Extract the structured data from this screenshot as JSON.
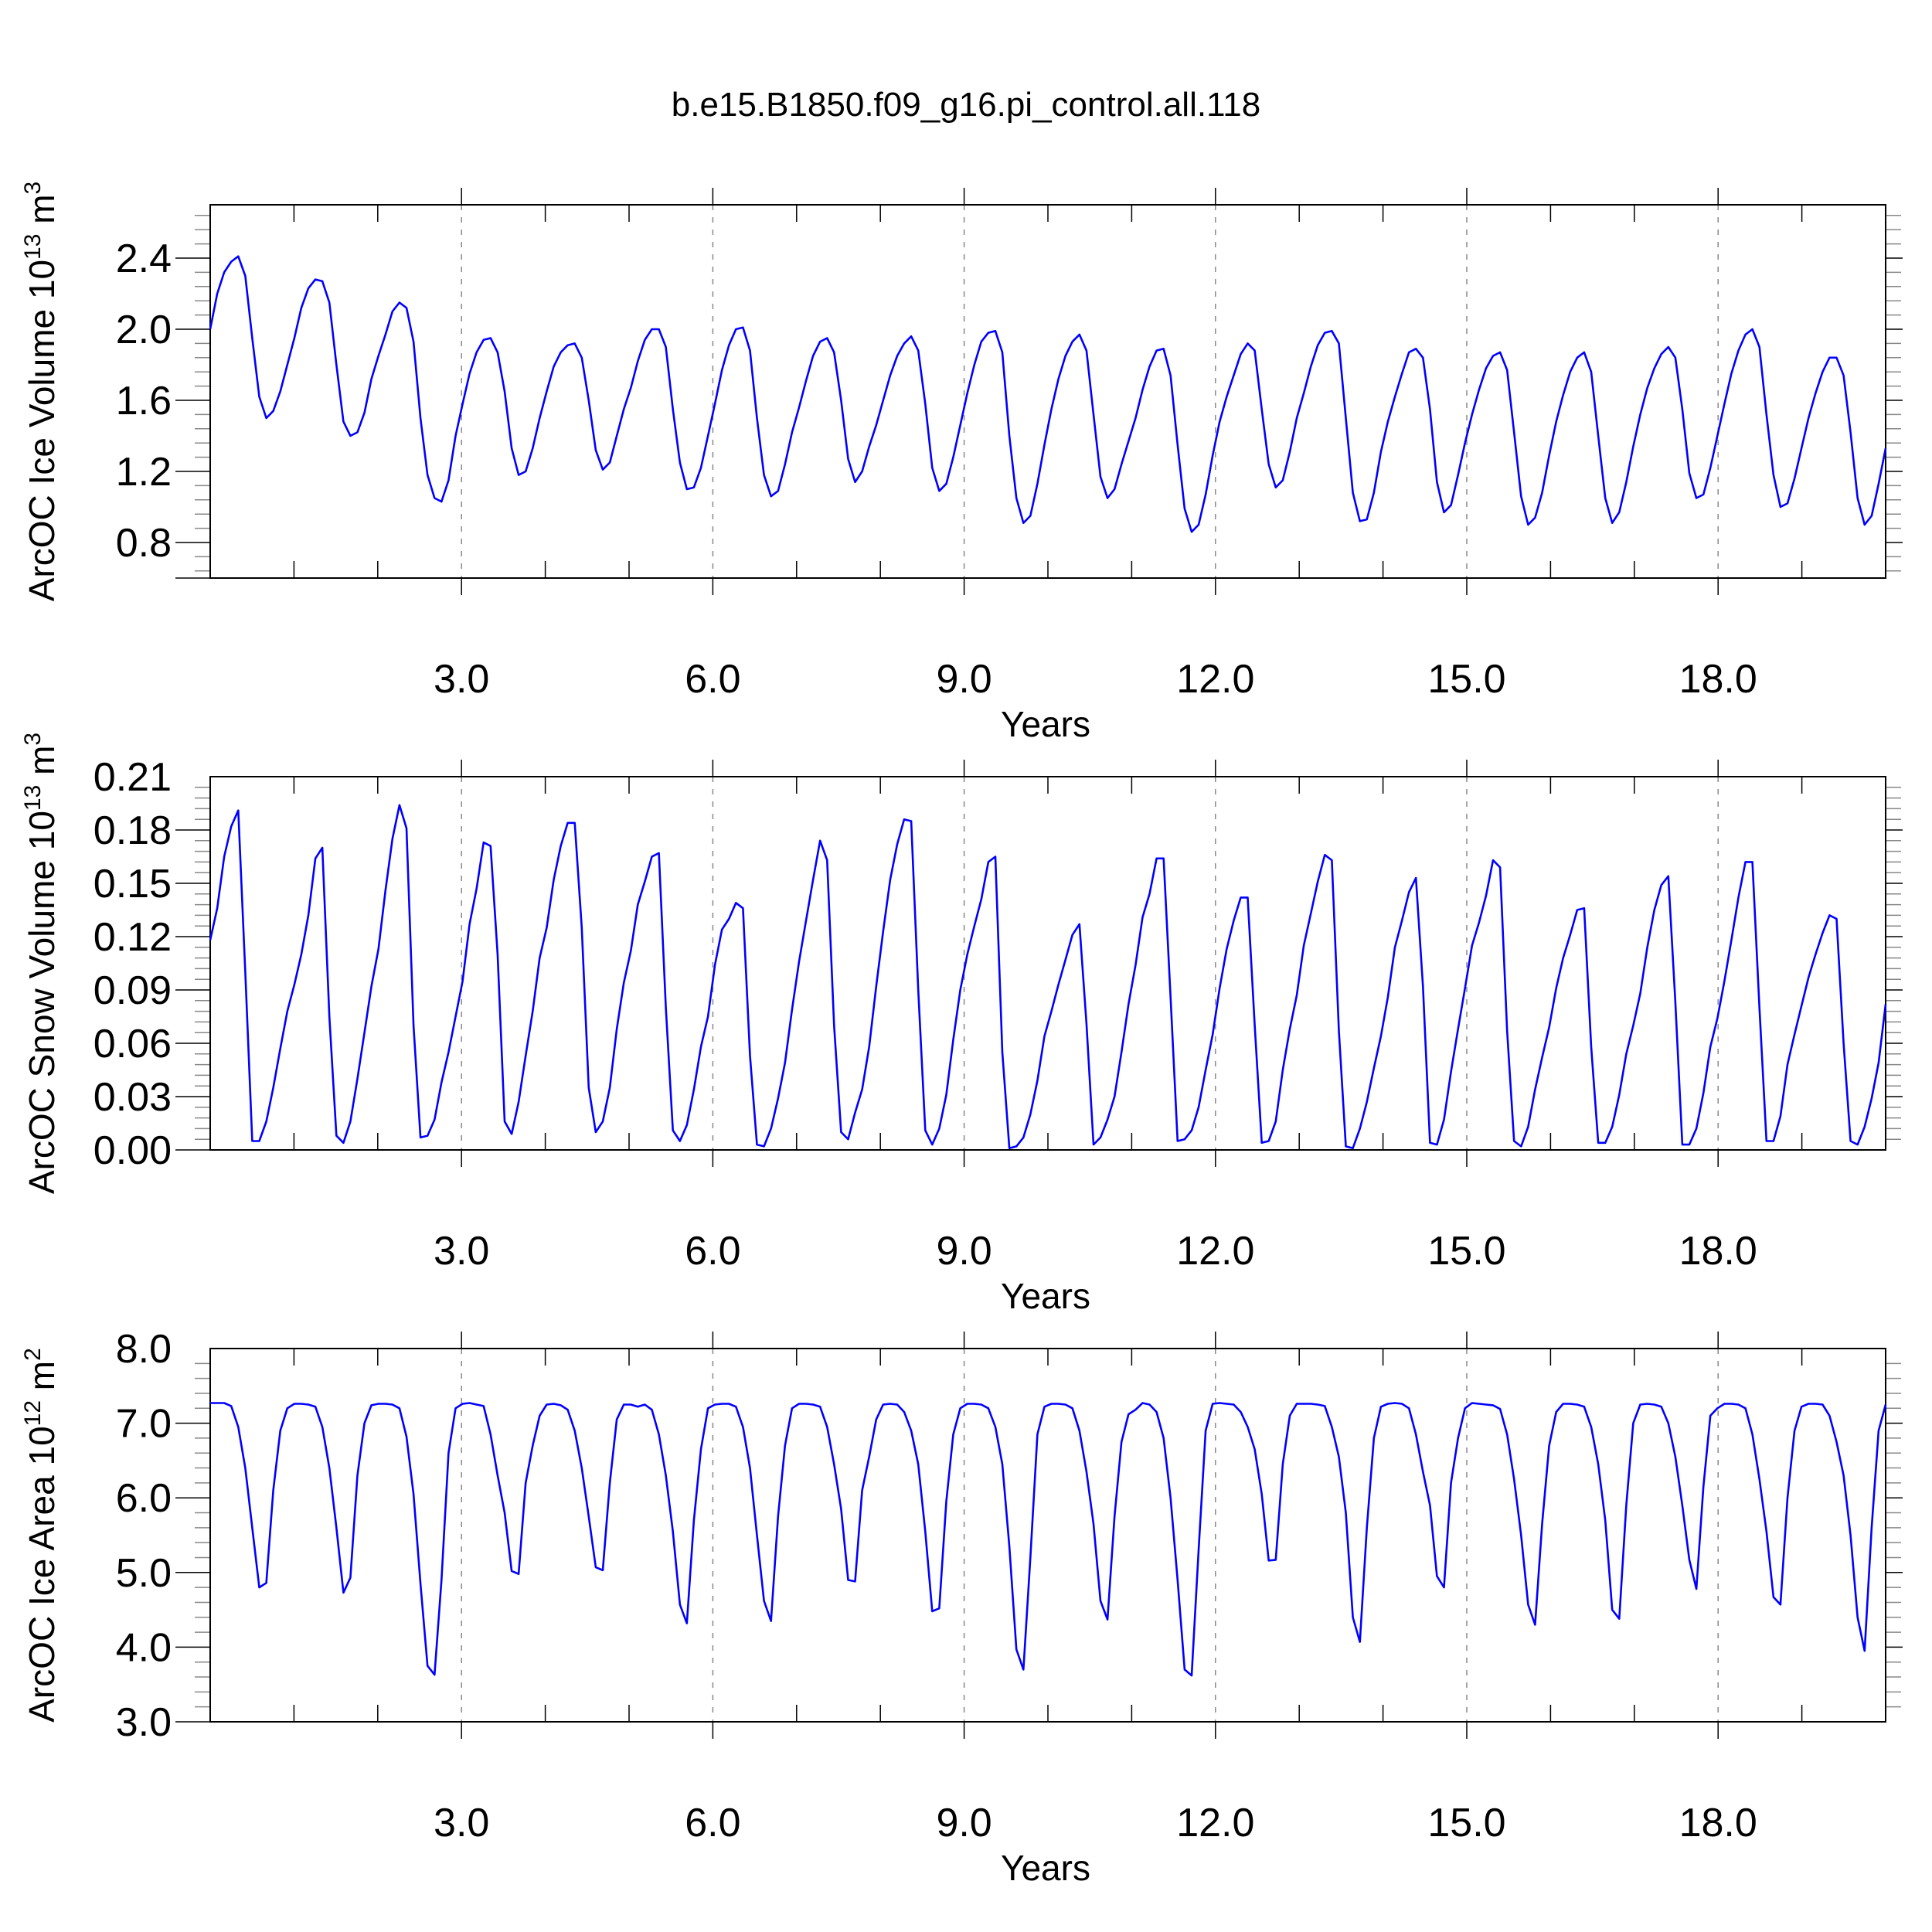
{
  "title": "b.e15.B1850.f09_g16.pi_control.all.118",
  "chart_data": [
    {
      "type": "line",
      "name": "ice-volume",
      "ylabel": "ArcOC Ice Volume 10",
      "ylabel_exp": "13",
      "ylabel_unit": " m",
      "ylabel_unit_exp": "3",
      "xlabel": "Years",
      "xlim": [
        0,
        20
      ],
      "ylim": [
        0.6,
        2.7
      ],
      "yticks": [
        0.8,
        1.2,
        1.6,
        2.0,
        2.4
      ],
      "ytick_labels": [
        "0.8",
        "1.2",
        "1.6",
        "2.0",
        "2.4"
      ],
      "xticks": [
        3,
        6,
        9,
        12,
        15,
        18
      ],
      "xtick_labels": [
        "3.0",
        "6.0",
        "9.0",
        "12.0",
        "15.0",
        "18.0"
      ],
      "color": "#0000ff",
      "monthly_values": [
        2.0,
        2.2,
        2.32,
        2.38,
        2.41,
        2.3,
        1.95,
        1.62,
        1.5,
        1.54,
        1.65,
        1.8,
        1.95,
        2.12,
        2.23,
        2.28,
        2.27,
        2.15,
        1.8,
        1.48,
        1.4,
        1.42,
        1.53,
        1.72,
        1.85,
        1.97,
        2.1,
        2.15,
        2.12,
        1.93,
        1.5,
        1.18,
        1.05,
        1.03,
        1.15,
        1.4,
        1.58,
        1.75,
        1.87,
        1.94,
        1.95,
        1.87,
        1.65,
        1.33,
        1.18,
        1.2,
        1.33,
        1.5,
        1.65,
        1.79,
        1.87,
        1.91,
        1.92,
        1.84,
        1.6,
        1.32,
        1.21,
        1.25,
        1.4,
        1.55,
        1.67,
        1.82,
        1.94,
        2.0,
        2.0,
        1.9,
        1.55,
        1.25,
        1.1,
        1.11,
        1.22,
        1.4,
        1.58,
        1.77,
        1.91,
        2.0,
        2.01,
        1.88,
        1.5,
        1.18,
        1.06,
        1.09,
        1.24,
        1.42,
        1.56,
        1.71,
        1.85,
        1.93,
        1.95,
        1.87,
        1.6,
        1.27,
        1.14,
        1.2,
        1.34,
        1.46,
        1.6,
        1.74,
        1.85,
        1.92,
        1.96,
        1.88,
        1.58,
        1.22,
        1.09,
        1.13,
        1.28,
        1.46,
        1.64,
        1.8,
        1.93,
        1.98,
        1.99,
        1.87,
        1.4,
        1.05,
        0.91,
        0.95,
        1.13,
        1.35,
        1.55,
        1.72,
        1.85,
        1.93,
        1.97,
        1.88,
        1.52,
        1.17,
        1.05,
        1.1,
        1.24,
        1.37,
        1.5,
        1.66,
        1.79,
        1.88,
        1.89,
        1.74,
        1.35,
        0.99,
        0.86,
        0.9,
        1.07,
        1.29,
        1.48,
        1.62,
        1.74,
        1.86,
        1.92,
        1.88,
        1.55,
        1.24,
        1.11,
        1.15,
        1.31,
        1.5,
        1.64,
        1.79,
        1.91,
        1.98,
        1.99,
        1.92,
        1.5,
        1.08,
        0.92,
        0.93,
        1.08,
        1.31,
        1.48,
        1.62,
        1.75,
        1.87,
        1.89,
        1.84,
        1.55,
        1.14,
        0.97,
        1.01,
        1.18,
        1.36,
        1.52,
        1.66,
        1.78,
        1.85,
        1.87,
        1.77,
        1.42,
        1.06,
        0.9,
        0.94,
        1.08,
        1.29,
        1.48,
        1.63,
        1.76,
        1.84,
        1.87,
        1.76,
        1.4,
        1.05,
        0.91,
        0.97,
        1.14,
        1.34,
        1.52,
        1.67,
        1.78,
        1.86,
        1.9,
        1.84,
        1.55,
        1.19,
        1.05,
        1.07,
        1.22,
        1.4,
        1.58,
        1.75,
        1.88,
        1.97,
        2.0,
        1.9,
        1.52,
        1.18,
        1.0,
        1.02,
        1.16,
        1.33,
        1.5,
        1.64,
        1.76,
        1.84,
        1.84,
        1.74,
        1.42,
        1.05,
        0.9,
        0.95,
        1.13,
        1.33
      ]
    },
    {
      "type": "line",
      "name": "snow-volume",
      "ylabel": "ArcOC Snow Volume 10",
      "ylabel_exp": "13",
      "ylabel_unit": " m",
      "ylabel_unit_exp": "3",
      "xlabel": "Years",
      "xlim": [
        0,
        20
      ],
      "ylim": [
        0.0,
        0.21
      ],
      "yticks": [
        0.0,
        0.03,
        0.06,
        0.09,
        0.12,
        0.15,
        0.18,
        0.21
      ],
      "ytick_labels": [
        "0.00",
        "0.03",
        "0.06",
        "0.09",
        "0.12",
        "0.15",
        "0.18",
        "0.21"
      ],
      "xticks": [
        3,
        6,
        9,
        12,
        15,
        18
      ],
      "xtick_labels": [
        "3.0",
        "6.0",
        "9.0",
        "12.0",
        "15.0",
        "18.0"
      ],
      "color": "#0000ff",
      "monthly_values": [
        0.118,
        0.136,
        0.165,
        0.182,
        0.191,
        0.1,
        0.005,
        0.005,
        0.016,
        0.035,
        0.057,
        0.078,
        0.093,
        0.11,
        0.132,
        0.164,
        0.17,
        0.075,
        0.008,
        0.004,
        0.016,
        0.04,
        0.066,
        0.092,
        0.113,
        0.146,
        0.175,
        0.194,
        0.181,
        0.07,
        0.007,
        0.008,
        0.017,
        0.038,
        0.055,
        0.075,
        0.095,
        0.127,
        0.147,
        0.173,
        0.171,
        0.11,
        0.016,
        0.009,
        0.027,
        0.053,
        0.078,
        0.108,
        0.125,
        0.152,
        0.171,
        0.184,
        0.184,
        0.125,
        0.035,
        0.01,
        0.016,
        0.035,
        0.068,
        0.094,
        0.112,
        0.138,
        0.151,
        0.165,
        0.167,
        0.08,
        0.011,
        0.005,
        0.014,
        0.034,
        0.058,
        0.075,
        0.104,
        0.124,
        0.13,
        0.139,
        0.136,
        0.053,
        0.003,
        0.002,
        0.012,
        0.029,
        0.049,
        0.079,
        0.106,
        0.129,
        0.152,
        0.174,
        0.163,
        0.07,
        0.01,
        0.006,
        0.021,
        0.034,
        0.058,
        0.092,
        0.123,
        0.152,
        0.172,
        0.186,
        0.185,
        0.09,
        0.011,
        0.003,
        0.012,
        0.031,
        0.062,
        0.09,
        0.11,
        0.126,
        0.141,
        0.162,
        0.165,
        0.055,
        0.001,
        0.002,
        0.007,
        0.02,
        0.039,
        0.064,
        0.078,
        0.093,
        0.107,
        0.121,
        0.127,
        0.071,
        0.003,
        0.007,
        0.017,
        0.03,
        0.055,
        0.082,
        0.104,
        0.131,
        0.144,
        0.164,
        0.164,
        0.086,
        0.005,
        0.006,
        0.011,
        0.024,
        0.045,
        0.065,
        0.091,
        0.113,
        0.129,
        0.142,
        0.142,
        0.07,
        0.004,
        0.005,
        0.016,
        0.045,
        0.068,
        0.087,
        0.115,
        0.133,
        0.151,
        0.166,
        0.163,
        0.067,
        0.002,
        0.001,
        0.012,
        0.027,
        0.046,
        0.064,
        0.086,
        0.114,
        0.129,
        0.145,
        0.153,
        0.092,
        0.004,
        0.003,
        0.017,
        0.044,
        0.068,
        0.091,
        0.115,
        0.128,
        0.143,
        0.163,
        0.159,
        0.067,
        0.005,
        0.002,
        0.013,
        0.034,
        0.052,
        0.069,
        0.091,
        0.108,
        0.121,
        0.135,
        0.136,
        0.058,
        0.004,
        0.004,
        0.013,
        0.031,
        0.054,
        0.07,
        0.088,
        0.114,
        0.135,
        0.149,
        0.154,
        0.083,
        0.003,
        0.003,
        0.012,
        0.032,
        0.058,
        0.074,
        0.095,
        0.118,
        0.142,
        0.162,
        0.162,
        0.08,
        0.005,
        0.005,
        0.019,
        0.048,
        0.065,
        0.081,
        0.097,
        0.11,
        0.122,
        0.132,
        0.13,
        0.06,
        0.005,
        0.003,
        0.013,
        0.029,
        0.049,
        0.082
      ]
    },
    {
      "type": "line",
      "name": "ice-area",
      "ylabel": "ArcOC Ice Area 10",
      "ylabel_exp": "12",
      "ylabel_unit": " m",
      "ylabel_unit_exp": "2",
      "xlabel": "Years",
      "xlim": [
        0,
        20
      ],
      "ylim": [
        3.0,
        8.0
      ],
      "yticks": [
        3.0,
        4.0,
        5.0,
        6.0,
        7.0,
        8.0
      ],
      "ytick_labels": [
        "3.0",
        "4.0",
        "5.0",
        "6.0",
        "7.0",
        "8.0"
      ],
      "xticks": [
        3,
        6,
        9,
        12,
        15,
        18
      ],
      "xtick_labels": [
        "3.0",
        "6.0",
        "9.0",
        "12.0",
        "15.0",
        "18.0"
      ],
      "color": "#0000ff",
      "monthly_values": [
        7.27,
        7.27,
        7.27,
        7.23,
        6.95,
        6.4,
        5.6,
        4.8,
        4.86,
        6.1,
        6.9,
        7.2,
        7.26,
        7.26,
        7.25,
        7.22,
        6.95,
        6.4,
        5.6,
        4.73,
        4.93,
        6.3,
        7.0,
        7.24,
        7.26,
        7.26,
        7.25,
        7.2,
        6.82,
        6.05,
        4.85,
        3.75,
        3.63,
        4.9,
        6.6,
        7.2,
        7.26,
        7.27,
        7.25,
        7.23,
        6.85,
        6.3,
        5.8,
        5.02,
        4.98,
        6.2,
        6.7,
        7.1,
        7.25,
        7.26,
        7.24,
        7.18,
        6.9,
        6.4,
        5.75,
        5.07,
        5.03,
        6.2,
        7.05,
        7.25,
        7.25,
        7.22,
        7.25,
        7.18,
        6.85,
        6.3,
        5.55,
        4.57,
        4.32,
        5.7,
        6.65,
        7.2,
        7.25,
        7.26,
        7.26,
        7.22,
        6.95,
        6.4,
        5.5,
        4.62,
        4.35,
        5.75,
        6.7,
        7.2,
        7.26,
        7.26,
        7.25,
        7.22,
        6.95,
        6.45,
        5.85,
        4.9,
        4.88,
        6.1,
        6.55,
        7.05,
        7.25,
        7.26,
        7.25,
        7.15,
        6.9,
        6.45,
        5.55,
        4.48,
        4.52,
        5.95,
        6.85,
        7.2,
        7.26,
        7.26,
        7.25,
        7.2,
        6.95,
        6.45,
        5.35,
        3.97,
        3.7,
        5.2,
        6.85,
        7.22,
        7.26,
        7.26,
        7.25,
        7.2,
        6.9,
        6.35,
        5.65,
        4.62,
        4.37,
        5.75,
        6.75,
        7.12,
        7.18,
        7.27,
        7.25,
        7.15,
        6.8,
        6.0,
        4.9,
        3.7,
        3.62,
        5.3,
        6.9,
        7.26,
        7.27,
        7.26,
        7.25,
        7.15,
        6.95,
        6.65,
        6.05,
        5.16,
        5.17,
        6.45,
        7.1,
        7.26,
        7.26,
        7.26,
        7.25,
        7.23,
        6.95,
        6.55,
        5.8,
        4.4,
        4.07,
        5.6,
        6.8,
        7.22,
        7.26,
        7.27,
        7.26,
        7.2,
        6.85,
        6.35,
        5.9,
        4.95,
        4.8,
        6.2,
        6.8,
        7.2,
        7.27,
        7.26,
        7.25,
        7.24,
        7.19,
        6.85,
        6.25,
        5.5,
        4.57,
        4.3,
        5.65,
        6.7,
        7.15,
        7.26,
        7.26,
        7.25,
        7.22,
        6.95,
        6.45,
        5.7,
        4.5,
        4.38,
        5.9,
        7.0,
        7.25,
        7.26,
        7.25,
        7.22,
        7.0,
        6.55,
        5.9,
        5.17,
        4.78,
        6.15,
        7.1,
        7.2,
        7.26,
        7.26,
        7.25,
        7.2,
        6.85,
        6.25,
        5.55,
        4.67,
        4.57,
        6.0,
        6.9,
        7.22,
        7.26,
        7.26,
        7.25,
        7.1,
        6.75,
        6.3,
        5.5,
        4.4,
        3.95,
        5.6,
        6.9,
        7.25
      ]
    }
  ]
}
